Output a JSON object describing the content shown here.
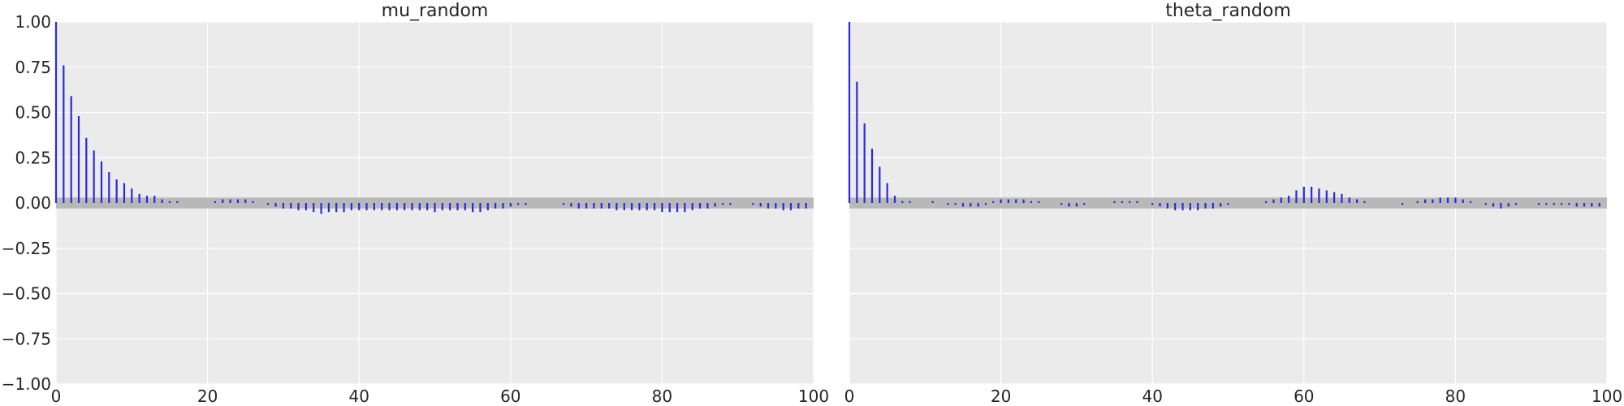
{
  "chart_data": [
    {
      "type": "bar",
      "subtype": "autocorrelation-stem",
      "title": "mu_random",
      "xlabel": "",
      "ylabel": "",
      "xlim": [
        0,
        100
      ],
      "ylim": [
        -1.0,
        1.0
      ],
      "x_ticks": [
        "0",
        "20",
        "40",
        "60",
        "80",
        "100"
      ],
      "y_ticks": [
        "−1.00",
        "−0.75",
        "−0.50",
        "−0.25",
        "0.00",
        "0.25",
        "0.50",
        "0.75",
        "1.00"
      ],
      "grid": true,
      "confidence_band": [
        -0.03,
        0.03
      ],
      "series": [
        {
          "lags": [
            0,
            1,
            2,
            3,
            4,
            5,
            6,
            7,
            8,
            9,
            10,
            11,
            12,
            13,
            14,
            15,
            16,
            17,
            18,
            19,
            20,
            21,
            22,
            23,
            24,
            25,
            26,
            27,
            28,
            29,
            30,
            31,
            32,
            33,
            34,
            35,
            36,
            37,
            38,
            39,
            40,
            41,
            42,
            43,
            44,
            45,
            46,
            47,
            48,
            49,
            50,
            51,
            52,
            53,
            54,
            55,
            56,
            57,
            58,
            59,
            60,
            61,
            62,
            63,
            64,
            65,
            66,
            67,
            68,
            69,
            70,
            71,
            72,
            73,
            74,
            75,
            76,
            77,
            78,
            79,
            80,
            81,
            82,
            83,
            84,
            85,
            86,
            87,
            88,
            89,
            90,
            91,
            92,
            93,
            94,
            95,
            96,
            97,
            98,
            99
          ],
          "values": [
            1.0,
            0.76,
            0.59,
            0.48,
            0.36,
            0.29,
            0.23,
            0.17,
            0.13,
            0.11,
            0.08,
            0.05,
            0.04,
            0.04,
            0.02,
            0.01,
            0.01,
            0.0,
            0.0,
            0.0,
            0.0,
            0.01,
            0.02,
            0.02,
            0.02,
            0.02,
            0.01,
            0.0,
            -0.01,
            -0.02,
            -0.03,
            -0.03,
            -0.04,
            -0.04,
            -0.05,
            -0.06,
            -0.05,
            -0.05,
            -0.05,
            -0.04,
            -0.04,
            -0.04,
            -0.04,
            -0.04,
            -0.04,
            -0.04,
            -0.04,
            -0.04,
            -0.04,
            -0.04,
            -0.05,
            -0.04,
            -0.04,
            -0.04,
            -0.04,
            -0.05,
            -0.05,
            -0.04,
            -0.03,
            -0.03,
            -0.02,
            -0.01,
            -0.01,
            0.0,
            0.0,
            0.0,
            0.0,
            -0.01,
            -0.02,
            -0.03,
            -0.03,
            -0.03,
            -0.03,
            -0.03,
            -0.04,
            -0.04,
            -0.04,
            -0.04,
            -0.04,
            -0.04,
            -0.05,
            -0.05,
            -0.05,
            -0.05,
            -0.04,
            -0.03,
            -0.03,
            -0.02,
            -0.01,
            -0.01,
            0.0,
            0.0,
            -0.01,
            -0.02,
            -0.03,
            -0.03,
            -0.04,
            -0.04,
            -0.03,
            -0.03
          ]
        }
      ]
    },
    {
      "type": "bar",
      "subtype": "autocorrelation-stem",
      "title": "theta_random",
      "xlabel": "",
      "ylabel": "",
      "xlim": [
        0,
        100
      ],
      "ylim": [
        -1.0,
        1.0
      ],
      "x_ticks": [
        "0",
        "20",
        "40",
        "60",
        "80",
        "100"
      ],
      "y_ticks": [],
      "grid": true,
      "confidence_band": [
        -0.03,
        0.03
      ],
      "series": [
        {
          "lags": [
            0,
            1,
            2,
            3,
            4,
            5,
            6,
            7,
            8,
            9,
            10,
            11,
            12,
            13,
            14,
            15,
            16,
            17,
            18,
            19,
            20,
            21,
            22,
            23,
            24,
            25,
            26,
            27,
            28,
            29,
            30,
            31,
            32,
            33,
            34,
            35,
            36,
            37,
            38,
            39,
            40,
            41,
            42,
            43,
            44,
            45,
            46,
            47,
            48,
            49,
            50,
            51,
            52,
            53,
            54,
            55,
            56,
            57,
            58,
            59,
            60,
            61,
            62,
            63,
            64,
            65,
            66,
            67,
            68,
            69,
            70,
            71,
            72,
            73,
            74,
            75,
            76,
            77,
            78,
            79,
            80,
            81,
            82,
            83,
            84,
            85,
            86,
            87,
            88,
            89,
            90,
            91,
            92,
            93,
            94,
            95,
            96,
            97,
            98,
            99
          ],
          "values": [
            1.0,
            0.67,
            0.44,
            0.3,
            0.2,
            0.11,
            0.04,
            0.01,
            0.01,
            0.0,
            0.0,
            0.01,
            0.0,
            -0.01,
            -0.01,
            -0.02,
            -0.02,
            -0.02,
            -0.01,
            0.01,
            0.02,
            0.02,
            0.02,
            0.02,
            0.01,
            0.01,
            0.0,
            0.0,
            -0.01,
            -0.02,
            -0.02,
            -0.01,
            0.0,
            0.0,
            0.0,
            0.01,
            0.01,
            0.01,
            0.01,
            0.0,
            -0.01,
            -0.02,
            -0.03,
            -0.04,
            -0.04,
            -0.04,
            -0.04,
            -0.03,
            -0.03,
            -0.02,
            -0.01,
            0.0,
            0.0,
            0.0,
            0.0,
            0.01,
            0.02,
            0.03,
            0.04,
            0.07,
            0.09,
            0.09,
            0.08,
            0.07,
            0.06,
            0.05,
            0.03,
            0.02,
            0.01,
            0.0,
            0.0,
            0.0,
            0.0,
            -0.01,
            0.0,
            0.01,
            0.02,
            0.02,
            0.03,
            0.03,
            0.03,
            0.02,
            0.01,
            0.0,
            -0.01,
            -0.02,
            -0.03,
            -0.02,
            -0.01,
            0.0,
            0.0,
            -0.01,
            -0.01,
            -0.01,
            -0.01,
            -0.01,
            -0.02,
            -0.02,
            -0.02,
            -0.02
          ]
        }
      ]
    }
  ],
  "colors": {
    "background": "#ebebeb",
    "grid": "#ffffff",
    "stem": "#2a2ae0",
    "band": "#b8b8b8"
  }
}
